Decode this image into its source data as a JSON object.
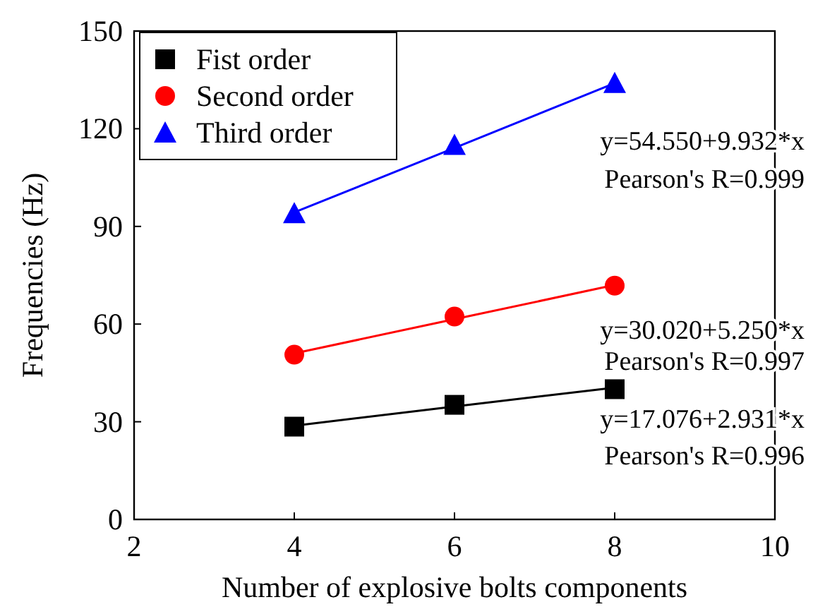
{
  "chart_data": {
    "type": "scatter",
    "xlabel": "Number of explosive bolts components",
    "ylabel": "Frequencies (Hz)",
    "x": [
      4,
      6,
      8
    ],
    "series": [
      {
        "name": "Fist order",
        "color": "#000000",
        "values": [
          28.5,
          35.2,
          40.0
        ],
        "marker": "square"
      },
      {
        "name": "Second order",
        "color": "#ff0000",
        "values": [
          50.6,
          62.3,
          71.8
        ],
        "marker": "circle"
      },
      {
        "name": "Third order",
        "color": "#0000ff",
        "values": [
          94.0,
          115.0,
          134.0
        ],
        "marker": "triangle"
      },
      {
        "type": "line",
        "color": "#000000",
        "values": [
          28.8,
          34.7,
          40.5
        ],
        "marker": "none"
      },
      {
        "type": "line",
        "color": "#ff0000",
        "values": [
          51.0,
          61.5,
          72.0
        ],
        "marker": "none"
      },
      {
        "type": "line",
        "color": "#0000ff",
        "values": [
          94.3,
          114.1,
          134.0
        ],
        "marker": "none"
      }
    ],
    "xlim": [
      2,
      10
    ],
    "xticks": [
      2,
      4,
      6,
      8,
      10
    ],
    "ylim": [
      0,
      150
    ],
    "yticks": [
      0,
      30,
      60,
      90,
      120,
      150
    ],
    "grid": false,
    "legend": "top left",
    "annotations": [
      "y=54.550+9.932*x",
      "Pearson's R=0.999",
      "y=30.020+5.250*x",
      "Pearson's R=0.997",
      "y=17.076+2.931*x",
      "Pearson's R=0.996"
    ]
  }
}
